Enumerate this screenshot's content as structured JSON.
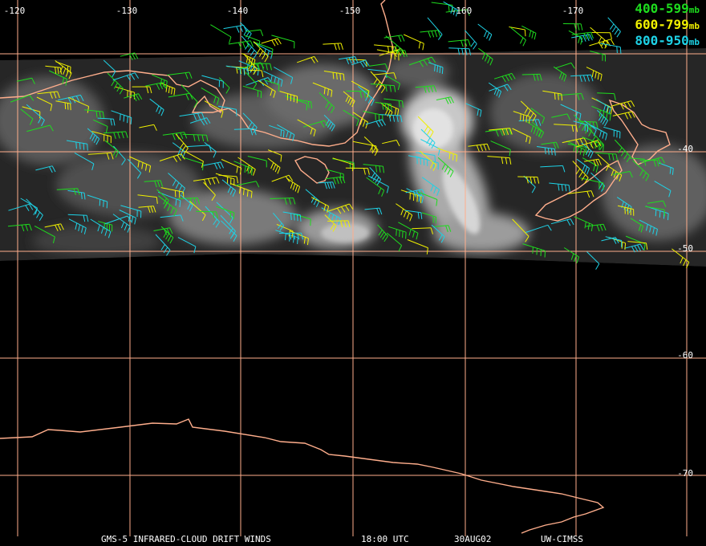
{
  "colors": {
    "grid": "#ffae8c",
    "coast": "#ffae8c",
    "band_400_599": "#1edc1e",
    "band_600_799": "#f0f000",
    "band_800_950": "#1ed2e6",
    "text": "#ffffff"
  },
  "lon_labels": [
    "-120",
    "-130",
    "-140",
    "-150",
    "-160",
    "-170"
  ],
  "lat_labels": [
    "-40",
    "-50",
    "-60",
    "-70"
  ],
  "legend": [
    {
      "label": "400-599",
      "unit": "mb",
      "color": "#1edc1e"
    },
    {
      "label": "600-799",
      "unit": "mb",
      "color": "#f0f000"
    },
    {
      "label": "800-950",
      "unit": "mb",
      "color": "#1ed2e6"
    }
  ],
  "footer": {
    "product": "GMS-5 INFRARED-CLOUD DRIFT WINDS",
    "time": "18:00 UTC",
    "date": "30AUG02",
    "source": "UW-CIMSS"
  }
}
